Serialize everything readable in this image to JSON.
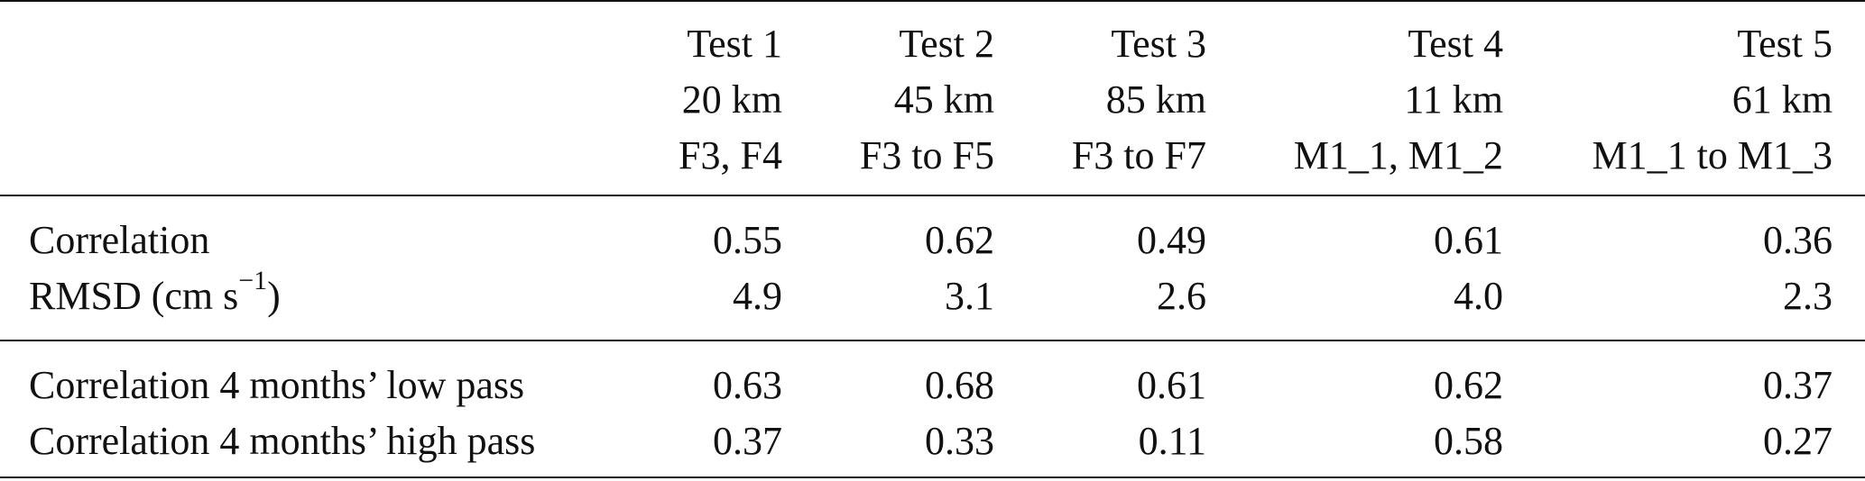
{
  "table": {
    "columns": [
      {
        "name": "Test 1",
        "distance": "20 km",
        "moorings": "F3, F4"
      },
      {
        "name": "Test 2",
        "distance": "45 km",
        "moorings": "F3 to F5"
      },
      {
        "name": "Test 3",
        "distance": "85 km",
        "moorings": "F3 to F7"
      },
      {
        "name": "Test 4",
        "distance": "11 km",
        "moorings": "M1_1, M1_2"
      },
      {
        "name": "Test 5",
        "distance": "61 km",
        "moorings": "M1_1 to M1_3"
      }
    ],
    "rows_block1": [
      {
        "label": "Correlation",
        "values": [
          "0.55",
          "0.62",
          "0.49",
          "0.61",
          "0.36"
        ]
      },
      {
        "label": "RMSD (cm s",
        "label_sup": "−1",
        "label_tail": ")",
        "values": [
          "4.9",
          "3.1",
          "2.6",
          "4.0",
          "2.3"
        ]
      }
    ],
    "rows_block2": [
      {
        "label": "Correlation 4 months’ low pass",
        "values": [
          "0.63",
          "0.68",
          "0.61",
          "0.62",
          "0.37"
        ]
      },
      {
        "label": "Correlation 4 months’ high pass",
        "values": [
          "0.37",
          "0.33",
          "0.11",
          "0.58",
          "0.27"
        ]
      }
    ]
  }
}
